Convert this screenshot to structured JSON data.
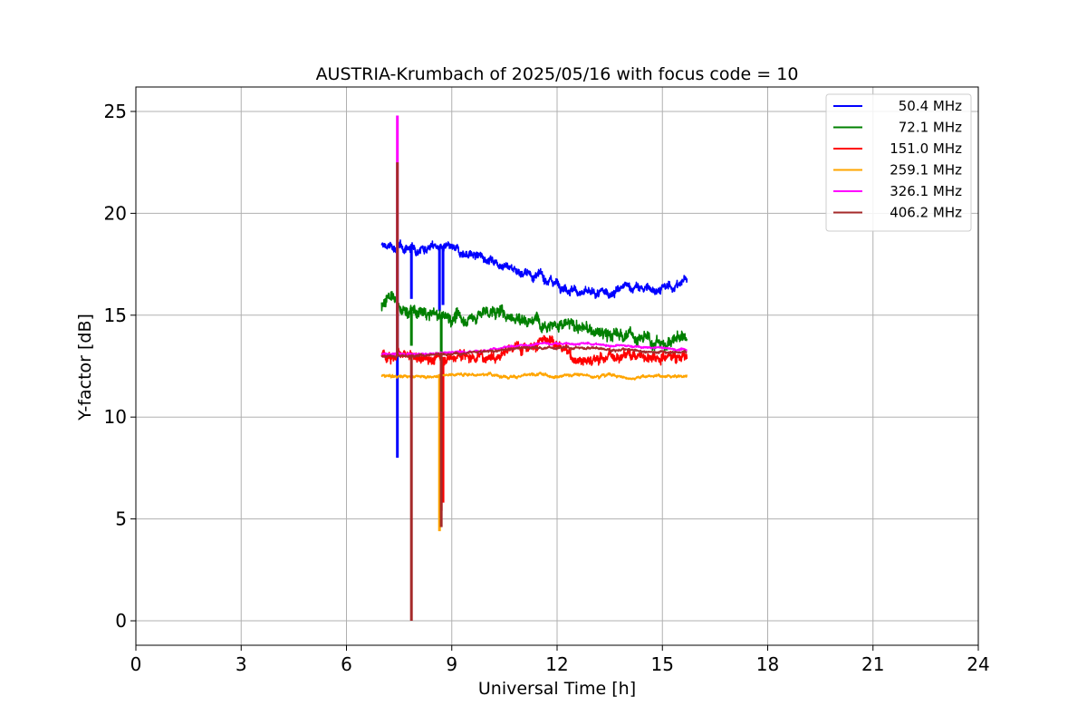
{
  "chart_data": {
    "type": "line",
    "title": "AUSTRIA-Krumbach of 2025/05/16 with focus code = 10",
    "xlabel": "Universal Time [h]",
    "ylabel": "Y-factor [dB]",
    "xlim": [
      0,
      24
    ],
    "ylim": [
      -1.2,
      26.2
    ],
    "xticks": [
      0,
      3,
      6,
      9,
      12,
      15,
      18,
      21,
      24
    ],
    "yticks": [
      0,
      5,
      10,
      15,
      20,
      25
    ],
    "grid": true,
    "legend_position": "top-right",
    "series": [
      {
        "name": "50.4 MHz",
        "color": "#0000ff",
        "x": [
          7.0,
          7.5,
          8.0,
          8.5,
          9.0,
          9.5,
          10.0,
          10.5,
          11.0,
          11.5,
          12.0,
          12.5,
          13.0,
          13.5,
          14.0,
          14.5,
          15.0,
          15.5,
          15.7
        ],
        "y": [
          18.4,
          18.3,
          18.3,
          18.4,
          18.2,
          18.0,
          17.8,
          17.5,
          17.1,
          16.9,
          16.6,
          16.2,
          16.0,
          16.1,
          16.4,
          16.3,
          16.3,
          16.5,
          16.9
        ],
        "spikes": [
          {
            "x": 7.45,
            "y": 8.0
          },
          {
            "x": 7.85,
            "y": 15.8
          },
          {
            "x": 8.65,
            "y": 15.2
          },
          {
            "x": 8.75,
            "y": 15.5
          }
        ]
      },
      {
        "name": "72.1 MHz",
        "color": "#008000",
        "x": [
          7.0,
          7.2,
          7.5,
          8.0,
          8.5,
          9.0,
          9.5,
          10.0,
          10.5,
          11.0,
          11.5,
          12.0,
          12.5,
          13.0,
          13.5,
          14.0,
          14.5,
          15.0,
          15.5,
          15.7
        ],
        "y": [
          15.4,
          16.1,
          15.3,
          15.1,
          15.0,
          14.9,
          14.8,
          15.2,
          15.1,
          14.8,
          14.8,
          14.5,
          14.5,
          14.2,
          14.0,
          14.1,
          13.8,
          13.6,
          13.9,
          13.9
        ],
        "spikes": [
          {
            "x": 7.45,
            "y": 13.0
          },
          {
            "x": 7.85,
            "y": 13.5
          },
          {
            "x": 8.7,
            "y": 13.0
          }
        ]
      },
      {
        "name": "151.0 MHz",
        "color": "#ff0000",
        "x": [
          7.0,
          7.5,
          8.0,
          8.5,
          9.0,
          9.5,
          10.0,
          10.5,
          11.0,
          11.5,
          12.0,
          12.5,
          13.0,
          13.5,
          14.0,
          14.5,
          15.0,
          15.5,
          15.7
        ],
        "y": [
          13.1,
          13.0,
          12.9,
          12.9,
          13.0,
          13.0,
          13.0,
          13.2,
          13.5,
          13.7,
          13.6,
          12.9,
          12.8,
          13.0,
          13.1,
          13.0,
          13.0,
          13.0,
          13.0
        ],
        "spikes": [
          {
            "x": 8.7,
            "y": 5.4
          },
          {
            "x": 8.75,
            "y": 5.8
          }
        ]
      },
      {
        "name": "259.1 MHz",
        "color": "#ffa500",
        "x": [
          7.0,
          7.5,
          8.0,
          8.5,
          9.0,
          9.5,
          10.0,
          10.5,
          11.0,
          11.5,
          12.0,
          12.5,
          13.0,
          13.5,
          14.0,
          14.5,
          15.0,
          15.5,
          15.7
        ],
        "y": [
          12.0,
          12.0,
          12.0,
          12.0,
          12.1,
          12.1,
          12.1,
          12.0,
          12.0,
          12.1,
          12.0,
          12.1,
          12.0,
          12.1,
          11.9,
          12.0,
          12.0,
          12.0,
          12.0
        ],
        "spikes": [
          {
            "x": 8.65,
            "y": 4.4
          }
        ]
      },
      {
        "name": "326.1 MHz",
        "color": "#ff00ff",
        "x": [
          7.0,
          7.5,
          8.0,
          8.5,
          9.0,
          9.5,
          10.0,
          10.5,
          11.0,
          11.5,
          12.0,
          12.5,
          13.0,
          13.5,
          14.0,
          14.5,
          15.0,
          15.5,
          15.7
        ],
        "y": [
          13.1,
          13.1,
          13.1,
          13.1,
          13.2,
          13.2,
          13.3,
          13.4,
          13.5,
          13.6,
          13.6,
          13.6,
          13.6,
          13.5,
          13.5,
          13.4,
          13.4,
          13.3,
          13.3
        ],
        "spikes": [
          {
            "x": 7.45,
            "y": 24.8
          }
        ]
      },
      {
        "name": "406.2 MHz",
        "color": "#a52a2a",
        "x": [
          7.0,
          7.5,
          8.0,
          8.5,
          9.0,
          9.5,
          10.0,
          10.5,
          11.0,
          11.5,
          12.0,
          12.5,
          13.0,
          13.5,
          14.0,
          14.5,
          15.0,
          15.5,
          15.7
        ],
        "y": [
          13.0,
          13.0,
          13.0,
          13.1,
          13.1,
          13.2,
          13.2,
          13.3,
          13.4,
          13.4,
          13.4,
          13.4,
          13.4,
          13.3,
          13.3,
          13.2,
          13.2,
          13.2,
          13.2
        ],
        "spikes": [
          {
            "x": 7.45,
            "y": 22.5
          },
          {
            "x": 7.85,
            "y": 0.0
          },
          {
            "x": 8.7,
            "y": 4.6
          }
        ]
      }
    ]
  }
}
